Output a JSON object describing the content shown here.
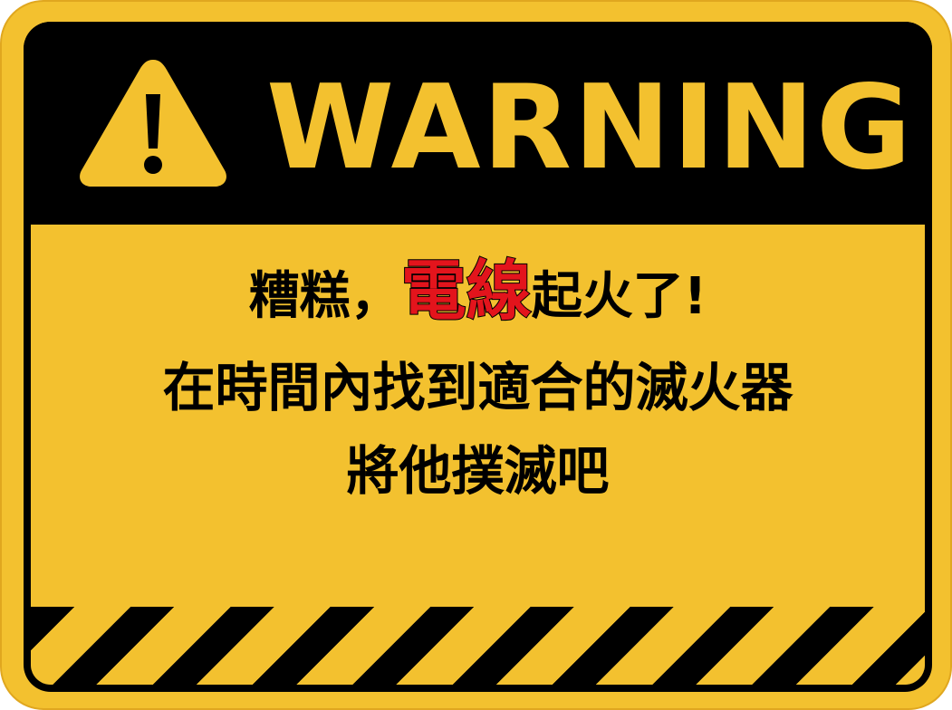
{
  "sign": {
    "title": "WARNING",
    "icon": "warning-triangle-icon",
    "message": {
      "line1_before": "糟糕，",
      "line1_highlight": "電線",
      "line1_after": "起火了!",
      "line2": "在時間內找到適合的滅火器",
      "line3": "將他撲滅吧"
    }
  },
  "colors": {
    "sign_yellow": "#f3c12f",
    "frame_black": "#000000",
    "highlight_red": "#e3141c"
  }
}
